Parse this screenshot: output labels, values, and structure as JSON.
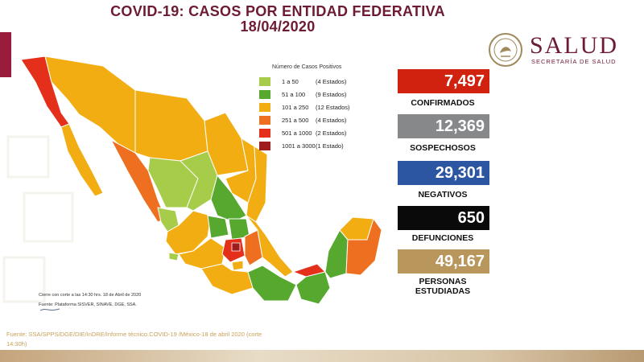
{
  "title_line1": "COVID-19: CASOS POR ENTIDAD FEDERATIVA",
  "title_line2": "18/04/2020",
  "logo": {
    "word": "SALUD",
    "subtitle": "SECRETARÍA DE SALUD",
    "seal_icon": "mexico-coat-of-arms-icon"
  },
  "legend": {
    "title": "Número de Casos Positivos",
    "items": [
      {
        "range": "1 a 50",
        "states": "(4 Estados)",
        "color": "#a6cc49"
      },
      {
        "range": "51 a 100",
        "states": "(9 Estados)",
        "color": "#56a82f"
      },
      {
        "range": "101 a 250",
        "states": "(12 Estados)",
        "color": "#f2ad12"
      },
      {
        "range": "251 a 500",
        "states": "(4 Estados)",
        "color": "#ee6f1f"
      },
      {
        "range": "501 a 1000",
        "states": "(2 Estados)",
        "color": "#e4301a"
      },
      {
        "range": "1001 a 3000",
        "states": "(1 Estado)",
        "color": "#9e1c1c"
      }
    ]
  },
  "stats": [
    {
      "value": "7,497",
      "label": "CONFIRMADOS",
      "color": "#d1210f"
    },
    {
      "value": "12,369",
      "label": "SOSPECHOSOS",
      "color": "#86888a"
    },
    {
      "value": "29,301",
      "label": "NEGATIVOS",
      "color": "#2c56a2"
    },
    {
      "value": "650",
      "label": "DEFUNCIONES",
      "color": "#0a0a0a"
    },
    {
      "value": "49,167",
      "label": "PERSONAS",
      "label2": "ESTUDIADAS",
      "color": "#b8965c"
    }
  ],
  "notes": {
    "cut": "Cierre con corte a las 14:30 hrs. 18 de Abril de 2020",
    "platform": "Fuente: Plataforma SISVER, SINAVE, DGE, SSA."
  },
  "source": "Fuente: SSA/SPPS/DGE/DIE/InDRE/Informe técnico.COVID-19 /México-18 de abril 2020 (corte 14:30h)",
  "brand_color": "#6d1a33"
}
